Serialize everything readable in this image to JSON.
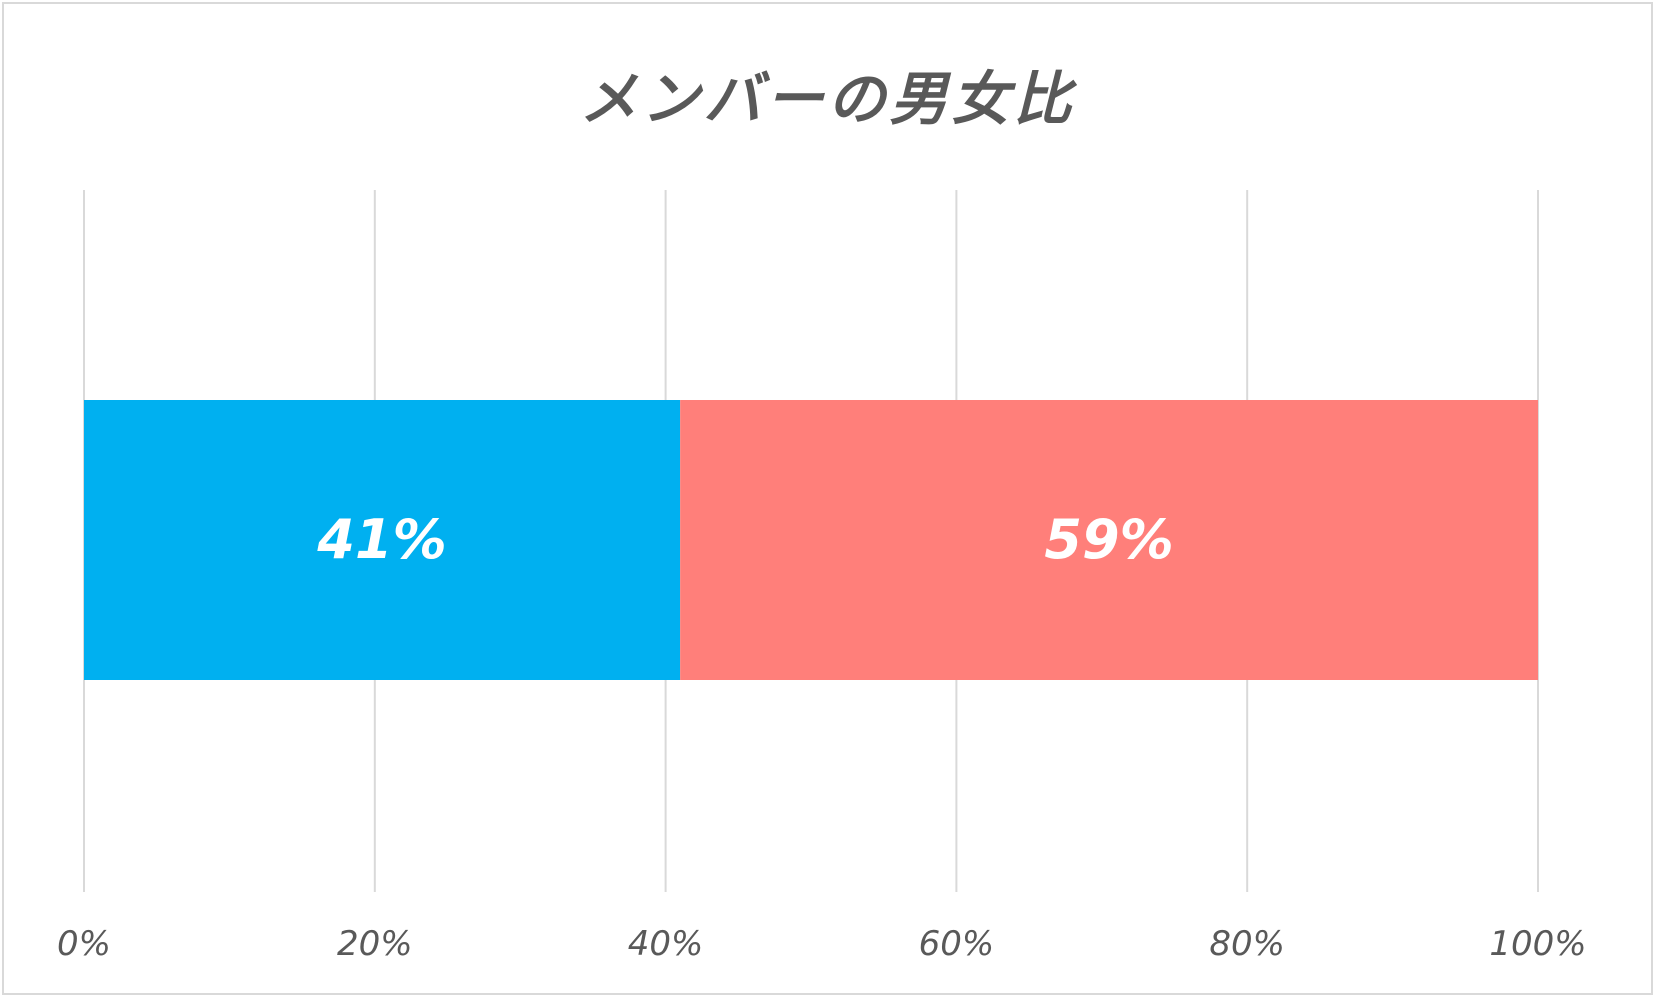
{
  "chart_data": {
    "type": "bar",
    "orientation": "horizontal",
    "stacked": true,
    "title": "メンバーの男女比",
    "categories": [
      ""
    ],
    "series": [
      {
        "values": [
          41
        ],
        "color": "#00b0f0",
        "label": "41%"
      },
      {
        "values": [
          59
        ],
        "color": "#ff7f7a",
        "label": "59%"
      }
    ],
    "xlim": [
      0,
      100
    ],
    "x_ticks": [
      0,
      20,
      40,
      60,
      80,
      100
    ],
    "x_tick_labels": [
      "0%",
      "20%",
      "40%",
      "60%",
      "80%",
      "100%"
    ],
    "grid": true,
    "gridline_color": "#d9d9d9",
    "legend": "none"
  }
}
